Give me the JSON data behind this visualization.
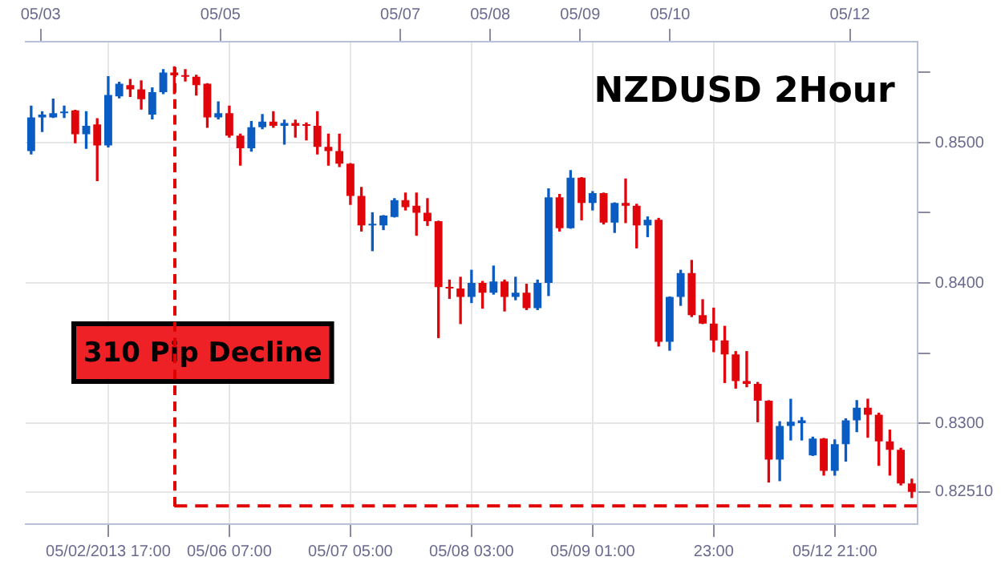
{
  "chart_data": {
    "type": "candlestick",
    "title": "NZDUSD 2Hour",
    "categories": [
      null,
      null,
      null,
      null,
      null,
      null,
      null,
      "05/02/2013 17:00",
      null,
      null,
      null,
      null,
      null,
      null,
      null,
      null,
      null,
      null,
      "05/06 07:00",
      null,
      null,
      null,
      null,
      null,
      null,
      null,
      null,
      null,
      null,
      "05/07 05:00",
      null,
      null,
      null,
      null,
      null,
      null,
      null,
      null,
      null,
      null,
      "05/08 03:00",
      null,
      null,
      null,
      null,
      null,
      null,
      null,
      null,
      null,
      null,
      "05/09 01:00",
      null,
      null,
      null,
      null,
      null,
      null,
      null,
      null,
      null,
      null,
      "23:00",
      null,
      null,
      null,
      null,
      null,
      null,
      null,
      null,
      null,
      null,
      "05/12 21:00",
      null,
      null,
      null,
      null,
      null,
      null,
      null
    ],
    "ohlc": [
      [
        0.8494,
        0.8526,
        0.8492,
        0.8518
      ],
      [
        0.8518,
        0.8522,
        0.8508,
        0.852
      ],
      [
        0.8518,
        0.8531,
        0.8518,
        0.8521
      ],
      [
        0.8521,
        0.8526,
        0.8518,
        0.8522
      ],
      [
        0.8523,
        0.8523,
        0.85,
        0.8506
      ],
      [
        0.8506,
        0.8522,
        0.8496,
        0.8512
      ],
      [
        0.8513,
        0.8517,
        0.8473,
        0.8498
      ],
      [
        0.8498,
        0.8547,
        0.8497,
        0.8534
      ],
      [
        0.8533,
        0.8543,
        0.8532,
        0.8542
      ],
      [
        0.8541,
        0.8545,
        0.8533,
        0.8538
      ],
      [
        0.8538,
        0.8544,
        0.8524,
        0.8531
      ],
      [
        0.852,
        0.8539,
        0.8517,
        0.8536
      ],
      [
        0.8536,
        0.8552,
        0.8535,
        0.855
      ],
      [
        0.855,
        0.8554,
        0.8535,
        0.8548
      ],
      [
        0.8548,
        0.8552,
        0.8544,
        0.8547
      ],
      [
        0.8547,
        0.8548,
        0.8534,
        0.8541
      ],
      [
        0.8542,
        0.8542,
        0.8511,
        0.8518
      ],
      [
        0.8518,
        0.8529,
        0.8517,
        0.8521
      ],
      [
        0.8521,
        0.8526,
        0.8504,
        0.8505
      ],
      [
        0.8505,
        0.8506,
        0.8484,
        0.8496
      ],
      [
        0.8496,
        0.8515,
        0.8494,
        0.8511
      ],
      [
        0.8511,
        0.852,
        0.851,
        0.8515
      ],
      [
        0.8515,
        0.8522,
        0.8511,
        0.8512
      ],
      [
        0.8512,
        0.8516,
        0.8499,
        0.8514
      ],
      [
        0.8514,
        0.8516,
        0.8504,
        0.8512
      ],
      [
        0.8513,
        0.8514,
        0.8502,
        0.8512
      ],
      [
        0.8512,
        0.8522,
        0.8492,
        0.8497
      ],
      [
        0.8497,
        0.8506,
        0.8484,
        0.8494
      ],
      [
        0.8494,
        0.8506,
        0.8483,
        0.8485
      ],
      [
        0.8485,
        0.8485,
        0.8456,
        0.8462
      ],
      [
        0.8462,
        0.8468,
        0.8437,
        0.8441
      ],
      [
        0.8441,
        0.845,
        0.8423,
        0.8442
      ],
      [
        0.8441,
        0.8448,
        0.8438,
        0.8448
      ],
      [
        0.8447,
        0.846,
        0.8447,
        0.8459
      ],
      [
        0.8459,
        0.8464,
        0.8452,
        0.8454
      ],
      [
        0.8455,
        0.8464,
        0.8434,
        0.845
      ],
      [
        0.845,
        0.846,
        0.8441,
        0.8444
      ],
      [
        0.8444,
        0.8444,
        0.8361,
        0.8397
      ],
      [
        0.8397,
        0.8402,
        0.8389,
        0.8396
      ],
      [
        0.8396,
        0.8404,
        0.8371,
        0.839
      ],
      [
        0.839,
        0.8409,
        0.8386,
        0.84
      ],
      [
        0.84,
        0.8401,
        0.8382,
        0.8393
      ],
      [
        0.8393,
        0.8412,
        0.8392,
        0.8401
      ],
      [
        0.8401,
        0.8402,
        0.838,
        0.839
      ],
      [
        0.839,
        0.8404,
        0.8388,
        0.8393
      ],
      [
        0.8393,
        0.8399,
        0.8381,
        0.8382
      ],
      [
        0.8382,
        0.8402,
        0.8381,
        0.84
      ],
      [
        0.84,
        0.8467,
        0.8391,
        0.8461
      ],
      [
        0.8461,
        0.8463,
        0.8437,
        0.8439
      ],
      [
        0.8439,
        0.848,
        0.8439,
        0.8475
      ],
      [
        0.8475,
        0.8475,
        0.8445,
        0.8457
      ],
      [
        0.8457,
        0.8465,
        0.8452,
        0.8464
      ],
      [
        0.8464,
        0.8464,
        0.8442,
        0.8443
      ],
      [
        0.8443,
        0.8457,
        0.8436,
        0.8457
      ],
      [
        0.8457,
        0.8474,
        0.8443,
        0.8455
      ],
      [
        0.8455,
        0.8456,
        0.8425,
        0.8441
      ],
      [
        0.8441,
        0.8447,
        0.8433,
        0.8445
      ],
      [
        0.8445,
        0.8446,
        0.8355,
        0.8358
      ],
      [
        0.8358,
        0.839,
        0.8352,
        0.839
      ],
      [
        0.839,
        0.8409,
        0.8384,
        0.8407
      ],
      [
        0.8407,
        0.8416,
        0.8376,
        0.8377
      ],
      [
        0.8377,
        0.8388,
        0.8371,
        0.8371
      ],
      [
        0.8371,
        0.8382,
        0.8351,
        0.8359
      ],
      [
        0.8359,
        0.8369,
        0.8329,
        0.8349
      ],
      [
        0.8349,
        0.8351,
        0.8325,
        0.833
      ],
      [
        0.833,
        0.8351,
        0.8326,
        0.8328
      ],
      [
        0.8328,
        0.8329,
        0.8301,
        0.8316
      ],
      [
        0.8316,
        0.8316,
        0.8258,
        0.8274
      ],
      [
        0.8274,
        0.8301,
        0.8259,
        0.8298
      ],
      [
        0.8298,
        0.8317,
        0.8288,
        0.8301
      ],
      [
        0.83,
        0.8304,
        0.8288,
        0.8302
      ],
      [
        0.8277,
        0.829,
        0.8277,
        0.8289
      ],
      [
        0.8289,
        0.8289,
        0.8263,
        0.8266
      ],
      [
        0.8266,
        0.8288,
        0.8263,
        0.8285
      ],
      [
        0.8285,
        0.8303,
        0.8273,
        0.8302
      ],
      [
        0.8302,
        0.8316,
        0.8294,
        0.8311
      ],
      [
        0.8311,
        0.8317,
        0.829,
        0.8306
      ],
      [
        0.8306,
        0.8307,
        0.827,
        0.8287
      ],
      [
        0.8287,
        0.8295,
        0.8263,
        0.8281
      ],
      [
        0.8281,
        0.8282,
        0.8256,
        0.8257
      ],
      [
        0.8257,
        0.826,
        0.8247,
        0.8251
      ]
    ],
    "colors": [
      "#0a5cc2",
      "#0a5cc2",
      "#0a5cc2",
      "#0a5cc2",
      "#e0040b",
      "#0a5cc2",
      "#e0040b",
      "#0a5cc2",
      "#0a5cc2",
      "#e0040b",
      "#e0040b",
      "#0a5cc2",
      "#0a5cc2",
      "#e0040b",
      "#e0040b",
      "#e0040b",
      "#e0040b",
      "#0a5cc2",
      "#e0040b",
      "#e0040b",
      "#0a5cc2",
      "#0a5cc2",
      "#e0040b",
      "#0a5cc2",
      "#e0040b",
      "#e0040b",
      "#e0040b",
      "#e0040b",
      "#e0040b",
      "#e0040b",
      "#e0040b",
      "#0a5cc2",
      "#0a5cc2",
      "#0a5cc2",
      "#e0040b",
      "#e0040b",
      "#e0040b",
      "#e0040b",
      "#e0040b",
      "#e0040b",
      "#0a5cc2",
      "#e0040b",
      "#0a5cc2",
      "#e0040b",
      "#0a5cc2",
      "#e0040b",
      "#0a5cc2",
      "#0a5cc2",
      "#e0040b",
      "#0a5cc2",
      "#e0040b",
      "#0a5cc2",
      "#e0040b",
      "#0a5cc2",
      "#e0040b",
      "#e0040b",
      "#0a5cc2",
      "#e0040b",
      "#0a5cc2",
      "#0a5cc2",
      "#e0040b",
      "#e0040b",
      "#e0040b",
      "#e0040b",
      "#e0040b",
      "#e0040b",
      "#e0040b",
      "#e0040b",
      "#0a5cc2",
      "#0a5cc2",
      "#0a5cc2",
      "#0a5cc2",
      "#e0040b",
      "#0a5cc2",
      "#0a5cc2",
      "#0a5cc2",
      "#e0040b",
      "#e0040b",
      "#e0040b",
      "#e0040b",
      "#e0040b"
    ],
    "ylim": [
      0.8228,
      0.8572
    ],
    "yticks": [
      {
        "value": 0.8251,
        "label": "0.82510"
      },
      {
        "value": 0.83,
        "label": "0.8300"
      },
      {
        "value": 0.835,
        "label": null
      },
      {
        "value": 0.84,
        "label": "0.8400"
      },
      {
        "value": 0.845,
        "label": null
      },
      {
        "value": 0.85,
        "label": "0.8500"
      },
      {
        "value": 0.855,
        "label": null
      }
    ],
    "x2lim": [
      "2013-05-02T20:00",
      "2013-05-12T18:00"
    ],
    "x2ticks": [
      {
        "value": "2013-05-03",
        "label": "05/03"
      },
      {
        "value": "2013-05-05",
        "label": "05/05"
      },
      {
        "value": "2013-05-07",
        "label": "05/07"
      },
      {
        "value": "2013-05-08",
        "label": "05/08"
      },
      {
        "value": "2013-05-09",
        "label": "05/09"
      },
      {
        "value": "2013-05-10",
        "label": "05/10"
      },
      {
        "value": "2013-05-12",
        "label": "05/12"
      }
    ],
    "ref_lines": [
      {
        "axis": "y",
        "value": 0.8241,
        "color": "#e00000",
        "line_style": "dashed"
      }
    ],
    "annotations": [
      "310 Pip Decline"
    ],
    "grid": true
  }
}
